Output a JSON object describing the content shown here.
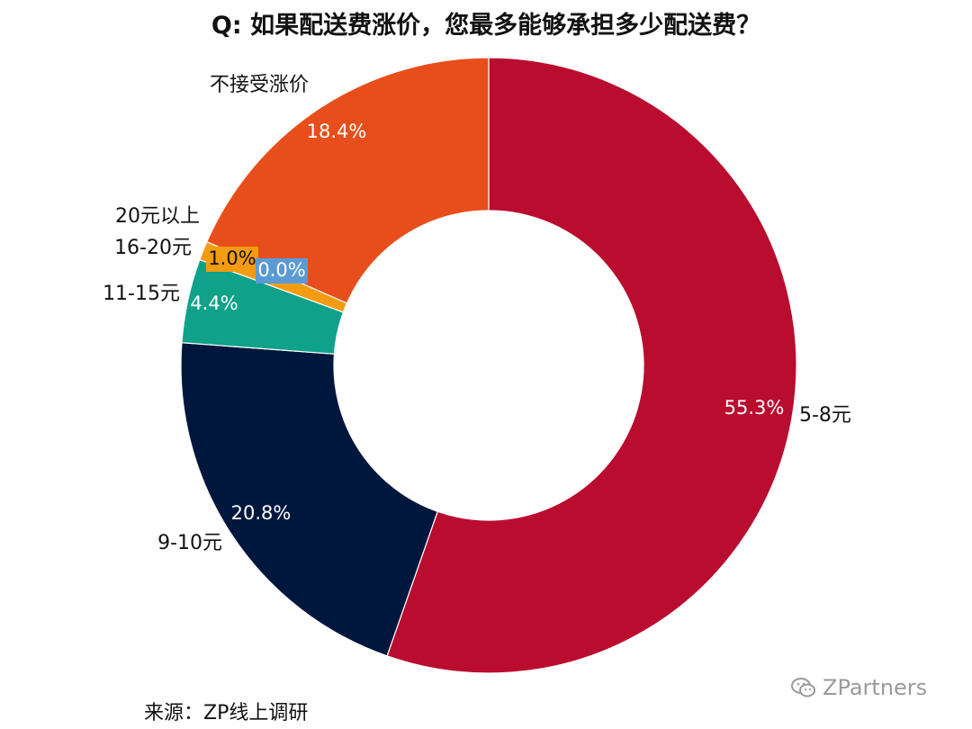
{
  "title": "Q: 如果配送费涨价，您最多能够承担多少配送费？",
  "source": "来源：ZP线上调研",
  "watermark": "ZPartners",
  "chart_data": {
    "type": "pie",
    "subtype": "donut",
    "title": "Q: 如果配送费涨价，您最多能够承担多少配送费？",
    "slices": [
      {
        "label": "5-8元",
        "value": 55.3,
        "value_label": "55.3%",
        "color": "#BA0C2F"
      },
      {
        "label": "9-10元",
        "value": 20.8,
        "value_label": "20.8%",
        "color": "#00173D"
      },
      {
        "label": "11-15元",
        "value": 4.4,
        "value_label": "4.4%",
        "color": "#0FA18A"
      },
      {
        "label": "16-20元",
        "value": 1.0,
        "value_label": "1.0%",
        "color": "#F39C12"
      },
      {
        "label": "20元以上",
        "value": 0.0,
        "value_label": "0.0%",
        "color": "#5B9BD5"
      },
      {
        "label": "不接受涨价",
        "value": 18.4,
        "value_label": "18.4%",
        "color": "#E84E1B"
      }
    ],
    "start_angle_deg": 0,
    "direction": "clockwise"
  }
}
